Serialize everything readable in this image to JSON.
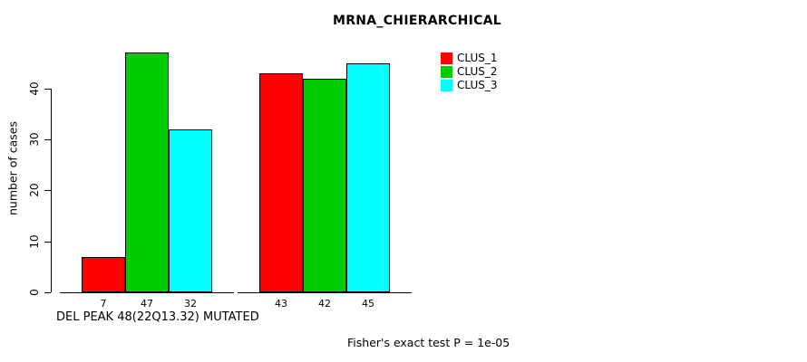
{
  "title": "MRNA_CHIERARCHICAL",
  "chart_data": {
    "type": "bar",
    "title": "MRNA_CHIERARCHICAL",
    "xlabel": "DEL PEAK 48(22Q13.32) MUTATED",
    "ylabel": "number of cases",
    "ylim": [
      0,
      47
    ],
    "yticks": [
      0,
      10,
      20,
      30,
      40
    ],
    "grid": false,
    "legend_position": "right",
    "categories": [
      "",
      ""
    ],
    "series": [
      {
        "name": "CLUS_1",
        "color": "#FF0000",
        "values": [
          7,
          43
        ]
      },
      {
        "name": "CLUS_2",
        "color": "#00CD00",
        "values": [
          47,
          42
        ]
      },
      {
        "name": "CLUS_3",
        "color": "#00FFFF",
        "values": [
          32,
          45
        ]
      }
    ],
    "bar_value_labels": [
      [
        "7",
        "47",
        "32"
      ],
      [
        "43",
        "42",
        "45"
      ]
    ],
    "annotation": "Fisher's exact test P = 1e-05"
  }
}
